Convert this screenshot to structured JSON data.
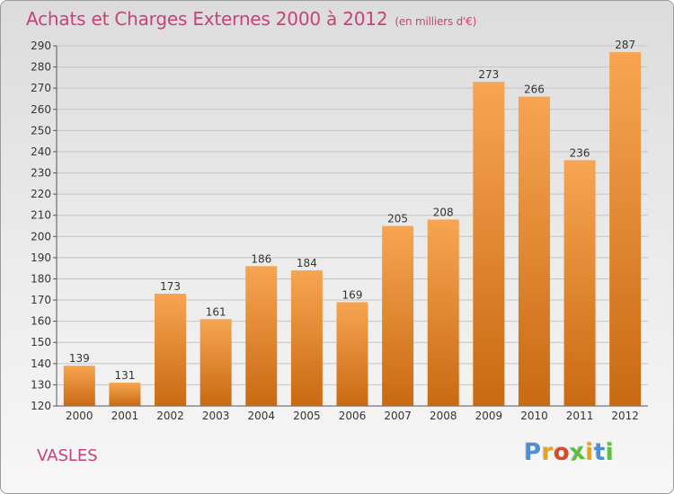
{
  "header": {
    "title": "Achats et Charges Externes 2000 à 2012",
    "subtitle": "(en milliers d'€)"
  },
  "footer": {
    "commune": "VASLES",
    "logo_text": "Proxiti"
  },
  "colors": {
    "title": "#c8427a",
    "bar_top": "#f7a552",
    "bar_bottom": "#c96a12",
    "logo_letters": [
      "#4a8fd6",
      "#e8a21e",
      "#d94a2a",
      "#5bbf3a",
      "#e8a21e",
      "#4a8fd6",
      "#5bbf3a"
    ]
  },
  "chart_data": {
    "type": "bar",
    "categories": [
      "2000",
      "2001",
      "2002",
      "2003",
      "2004",
      "2005",
      "2006",
      "2007",
      "2008",
      "2009",
      "2010",
      "2011",
      "2012"
    ],
    "values": [
      139,
      131,
      173,
      161,
      186,
      184,
      169,
      205,
      208,
      273,
      266,
      236,
      287
    ],
    "ylim": [
      120,
      290
    ],
    "yticks": [
      120,
      130,
      140,
      150,
      160,
      170,
      180,
      190,
      200,
      210,
      220,
      230,
      240,
      250,
      260,
      270,
      280,
      290
    ],
    "grid": true,
    "title": "Achats et Charges Externes 2000 à 2012",
    "xlabel": "",
    "ylabel": ""
  }
}
